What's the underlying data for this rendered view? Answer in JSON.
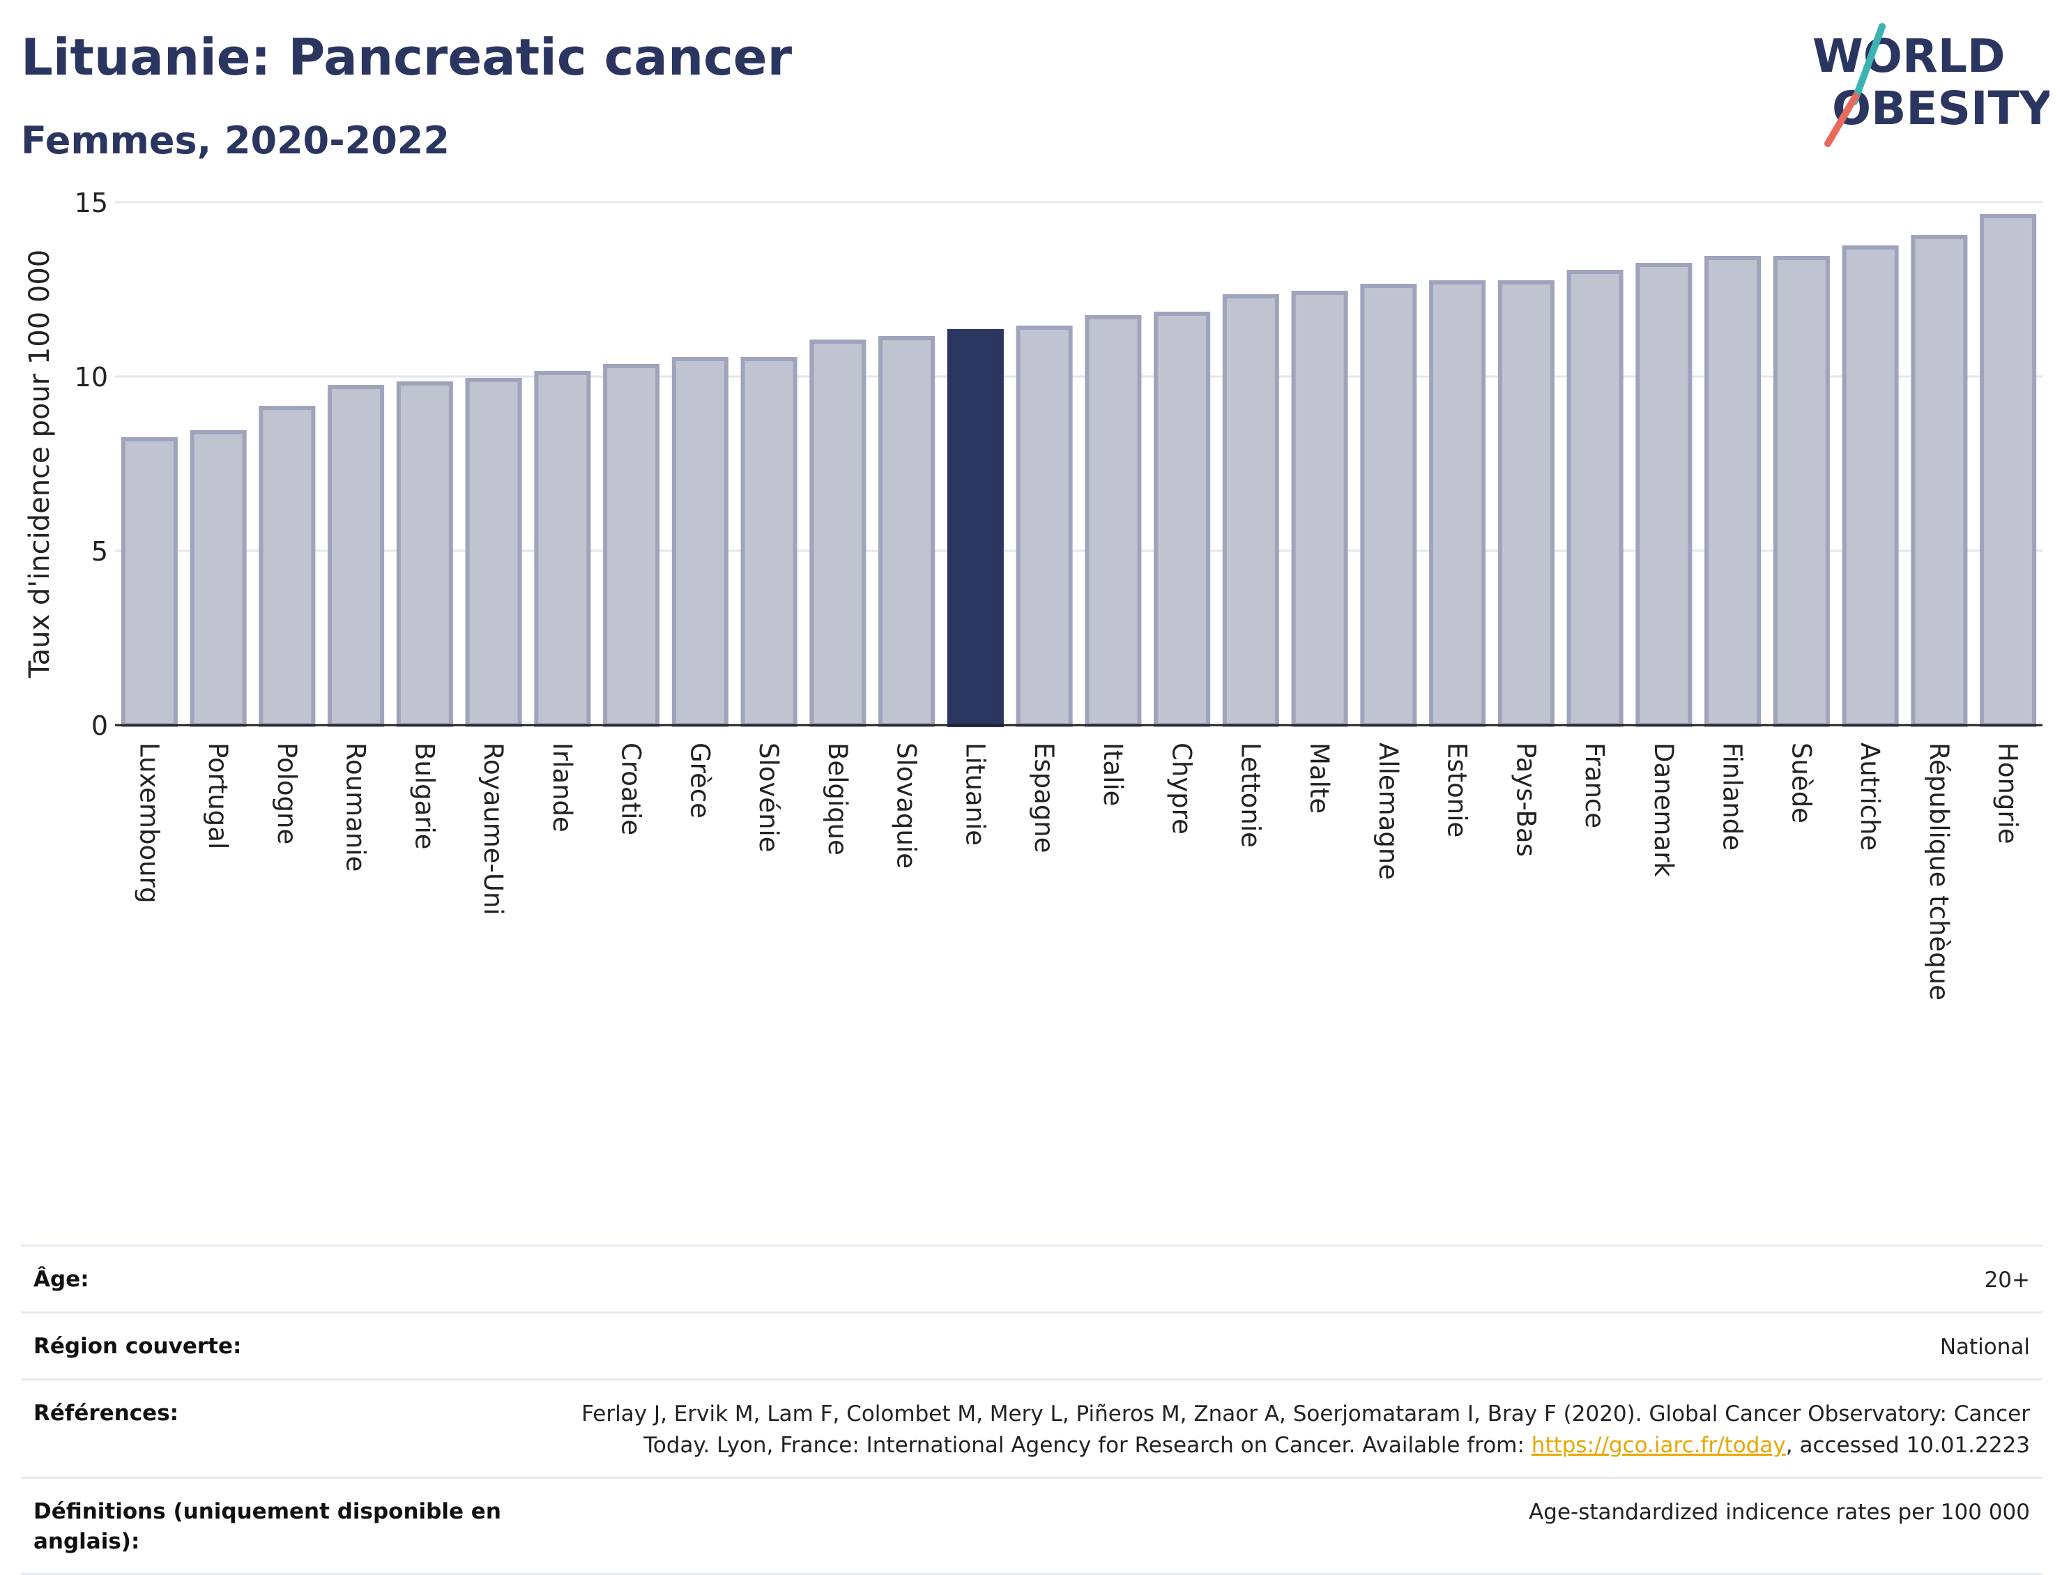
{
  "header": {
    "title": "Lituanie: Pancreatic cancer",
    "subtitle": "Femmes, 2020-2022",
    "logo_line1": "WORLD",
    "logo_line2": "OBESITY"
  },
  "colors": {
    "bar": "#c0c3d0",
    "bar_border": "#9fa4bb",
    "highlight": "#2a3560",
    "title": "#2a3560",
    "link": "#e7a800",
    "logo_teal": "#3bb3b3",
    "logo_red": "#e86a5a"
  },
  "chart_data": {
    "type": "bar",
    "title": "",
    "ylabel": "Taux d'incidence pour 100 000",
    "xlabel": "",
    "ylim": [
      0,
      15
    ],
    "yticks": [
      0,
      5,
      10,
      15
    ],
    "grid": true,
    "highlight": "Lituanie",
    "categories": [
      "Luxembourg",
      "Portugal",
      "Pologne",
      "Roumanie",
      "Bulgarie",
      "Royaume-Uni",
      "Irlande",
      "Croatie",
      "Grèce",
      "Slovénie",
      "Belgique",
      "Slovaquie",
      "Lituanie",
      "Espagne",
      "Italie",
      "Chypre",
      "Lettonie",
      "Malte",
      "Allemagne",
      "Estonie",
      "Pays-Bas",
      "France",
      "Danemark",
      "Finlande",
      "Suède",
      "Autriche",
      "République tchèque",
      "Hongrie"
    ],
    "values": [
      8.2,
      8.4,
      9.1,
      9.7,
      9.8,
      9.9,
      10.1,
      10.3,
      10.5,
      10.5,
      11.0,
      11.1,
      11.3,
      11.4,
      11.7,
      11.8,
      12.3,
      12.4,
      12.6,
      12.7,
      12.7,
      13.0,
      13.2,
      13.4,
      13.4,
      13.7,
      14.0,
      14.6
    ]
  },
  "meta": {
    "age_label": "Âge:",
    "age_value": "20+",
    "region_label": "Région couverte:",
    "region_value": "National",
    "refs_label": "Références:",
    "refs_text_1": "Ferlay J, Ervik M, Lam F, Colombet M, Mery L, Piñeros M, Znaor A, Soerjomataram I, Bray F (2020). Global Cancer Observatory: Cancer Today. Lyon, France: International Agency for Research on Cancer. Available from: ",
    "refs_link": "https://gco.iarc.fr/today",
    "refs_text_2": ", accessed 10.01.2223",
    "defs_label": "Définitions (uniquement disponible en anglais):",
    "defs_value": "Age-standardized indicence rates per 100 000"
  }
}
